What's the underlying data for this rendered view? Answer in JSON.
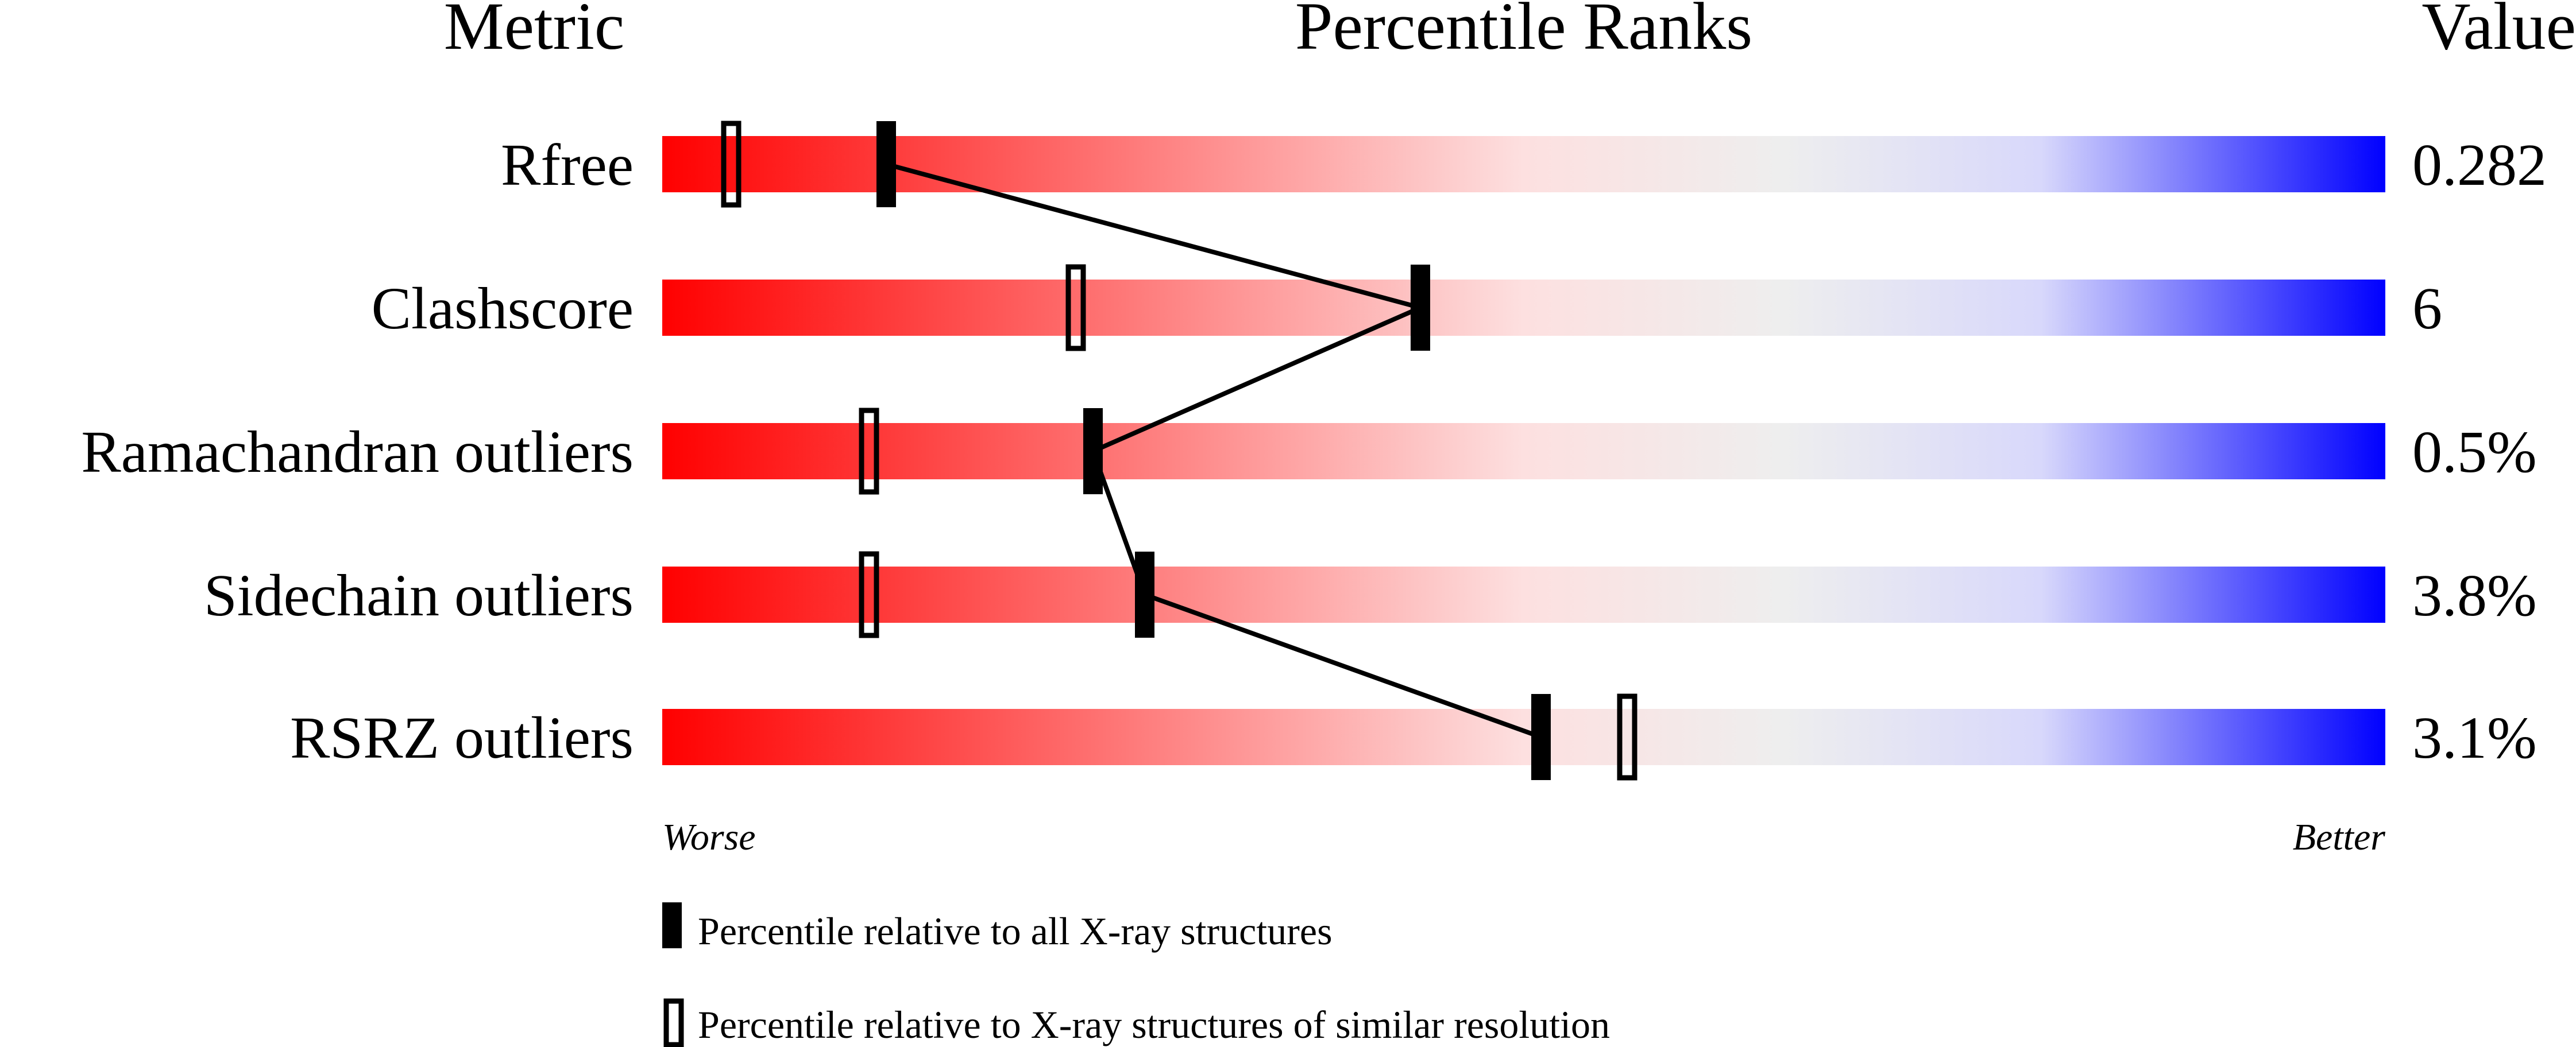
{
  "chart_data": {
    "type": "percentile-slider",
    "headers": {
      "metric": "Metric",
      "ranks": "Percentile Ranks",
      "value": "Value"
    },
    "xlim": [
      0,
      100
    ],
    "gradient_colors": {
      "worse": "#ff0000",
      "middle": "#eeeeee",
      "better": "#0000ff"
    },
    "metrics": [
      {
        "name": "Rfree",
        "value": "0.282",
        "percentile_all": 13,
        "percentile_similar": 4
      },
      {
        "name": "Clashscore",
        "value": "6",
        "percentile_all": 44,
        "percentile_similar": 24
      },
      {
        "name": "Ramachandran outliers",
        "value": "0.5%",
        "percentile_all": 25,
        "percentile_similar": 12
      },
      {
        "name": "Sidechain outliers",
        "value": "3.8%",
        "percentile_all": 28,
        "percentile_similar": 12
      },
      {
        "name": "RSRZ outliers",
        "value": "3.1%",
        "percentile_all": 51,
        "percentile_similar": 56
      }
    ],
    "axis_labels": {
      "left": "Worse",
      "right": "Better"
    },
    "legend": {
      "filled": "Percentile relative to all X-ray structures",
      "open": "Percentile relative to X-ray structures of similar resolution"
    }
  }
}
